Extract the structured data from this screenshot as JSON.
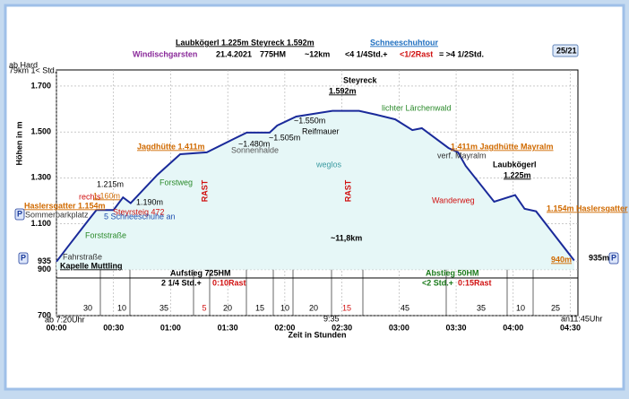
{
  "chart_data": {
    "type": "area",
    "header": [
      {
        "text": "Laubkögerl 1.225m  Steyreck 1.592m",
        "color": "#000000"
      },
      {
        "text": "Schneeschuhtour",
        "color": "#1f6fc0"
      },
      {
        "text": "Windischgarsten",
        "color": "#8a2a9a"
      },
      {
        "text": "21.4.2021",
        "color": "#000000"
      },
      {
        "text": "775HM",
        "color": "#000000"
      },
      {
        "text": "~12km",
        "color": "#000000"
      },
      {
        "text": "<4 1/4Std.+",
        "color": "#000000"
      },
      {
        "text": "<1/2Rast",
        "color": "#d01010"
      },
      {
        "text": "= >4 1/2Std.",
        "color": "#000000"
      },
      {
        "text": "25/21",
        "color": "#000000"
      },
      {
        "text": "ab Hard",
        "color": "#000000"
      },
      {
        "text": "79km 1< Std.",
        "color": "#000000"
      }
    ],
    "y_label": "Höhen in m",
    "x_label": "Zeit in Stunden",
    "x": [
      0,
      6,
      17,
      21,
      30,
      35,
      39,
      53,
      65,
      79,
      93,
      100,
      112,
      116,
      126,
      145,
      159,
      168,
      178,
      187,
      192,
      206,
      211,
      215,
      230,
      241,
      246,
      252,
      272
    ],
    "values": [
      935,
      1000,
      1118,
      1160,
      1160,
      1215,
      1190,
      1313,
      1403,
      1411,
      1469,
      1497,
      1497,
      1528,
      1567,
      1592,
      1592,
      1575,
      1555,
      1508,
      1516,
      1430,
      1411,
      1352,
      1196,
      1225,
      1165,
      1154,
      940
    ],
    "color": "#1a2a9a",
    "fill": "#e6f7f7",
    "xlim": [
      0,
      274
    ],
    "ylim": [
      700,
      1770
    ],
    "xticks": [
      {
        "value": 0,
        "label": "00:00"
      },
      {
        "value": 30,
        "label": "00:30"
      },
      {
        "value": 60,
        "label": "01:00"
      },
      {
        "value": 90,
        "label": "01:30"
      },
      {
        "value": 120,
        "label": "02:00"
      },
      {
        "value": 150,
        "label": "02:30"
      },
      {
        "value": 180,
        "label": "03:00"
      },
      {
        "value": 210,
        "label": "03:30"
      },
      {
        "value": 240,
        "label": "04:00"
      },
      {
        "value": 270,
        "label": "04:30"
      }
    ],
    "yticks": [
      700,
      900,
      935,
      {
        "value": 1100,
        "label": "1.100"
      },
      {
        "value": 1300,
        "label": "1.300"
      },
      {
        "value": 1500,
        "label": "1.500"
      },
      {
        "value": 1700,
        "label": "1.700"
      }
    ],
    "grid": true,
    "segments": [
      {
        "text": "30",
        "color": "#000000"
      },
      {
        "text": "10",
        "color": "#000000"
      },
      {
        "text": "35",
        "color": "#000000"
      },
      {
        "text": "5",
        "color": "#d01010"
      },
      {
        "text": "20",
        "color": "#000000"
      },
      {
        "text": "15",
        "color": "#000000"
      },
      {
        "text": "10",
        "color": "#000000"
      },
      {
        "text": "20",
        "color": "#000000"
      },
      {
        "text": "15",
        "color": "#d01010"
      },
      {
        "text": "45",
        "color": "#000000"
      },
      {
        "text": "35",
        "color": "#000000"
      },
      {
        "text": "10",
        "color": "#000000"
      },
      {
        "text": "25",
        "color": "#000000"
      }
    ],
    "annotations": [
      {
        "text": "Jagdhütte 1.411m",
        "color": "#d06a00"
      },
      {
        "text": "Steyreck",
        "color": "#000000"
      },
      {
        "text": "1.592m",
        "color": "#000000"
      },
      {
        "text": "lichter Lärchenwald",
        "color": "#2a8a2a"
      },
      {
        "text": "1.411m Jagdhütte Mayralm",
        "color": "#d06a00"
      },
      {
        "text": "verf. Mayralm",
        "color": "#333333"
      },
      {
        "text": "Laubkögerl",
        "color": "#000000"
      },
      {
        "text": "1.225m",
        "color": "#000000"
      },
      {
        "text": "1.154m Haslersgatter",
        "color": "#d06a00"
      },
      {
        "text": "Haslersgatter 1.154m",
        "color": "#d06a00"
      },
      {
        "text": "Sommerparkplatz",
        "color": "#333333"
      },
      {
        "text": "1.215m",
        "color": "#000000"
      },
      {
        "text": "rechts",
        "color": "#d01010"
      },
      {
        "text": "1.160m",
        "color": "#d06a00"
      },
      {
        "text": "1.190m",
        "color": "#000000"
      },
      {
        "text": "Steyrsteig 472",
        "color": "#d01010"
      },
      {
        "text": "5 Schneeschuhe an",
        "color": "#1f4fb0"
      },
      {
        "text": "Forststraße",
        "color": "#2a8a2a"
      },
      {
        "text": "Forstweg",
        "color": "#2a8a2a"
      },
      {
        "text": "Fahrstraße",
        "color": "#333333"
      },
      {
        "text": "Kapelle Muttling",
        "color": "#000000"
      },
      {
        "text": "RAST",
        "color": "#d01010"
      },
      {
        "text": "RAST",
        "color": "#d01010"
      },
      {
        "text": "~1.480m",
        "color": "#000000"
      },
      {
        "text": "Sonnenhalde",
        "color": "#555555"
      },
      {
        "text": "~1.505m",
        "color": "#000000"
      },
      {
        "text": "~1.550m",
        "color": "#000000"
      },
      {
        "text": "Reifmauer",
        "color": "#000000"
      },
      {
        "text": "weglos",
        "color": "#3a9aa0"
      },
      {
        "text": "~11,8km",
        "color": "#000000"
      },
      {
        "text": "Wanderweg",
        "color": "#d01010"
      },
      {
        "text": "940m",
        "color": "#d06a00"
      },
      {
        "text": "935m",
        "color": "#000000"
      },
      {
        "text": "Aufstieg 725HM",
        "color": "#000000"
      },
      {
        "text": "2 1/4 Std.+",
        "color": "#000000"
      },
      {
        "text": "0:10Rast",
        "color": "#d01010"
      },
      {
        "text": "Abstieg 50HM",
        "color": "#1a7a1a"
      },
      {
        "text": "<2 Std.+",
        "color": "#1a7a1a"
      },
      {
        "text": "0:15Rast",
        "color": "#d01010"
      },
      {
        "text": "ab 7:20Uhr",
        "color": "#000000"
      },
      {
        "text": "9:35",
        "color": "#000000"
      },
      {
        "text": "an11:45Uhr",
        "color": "#000000"
      },
      {
        "text": "P",
        "color": "#1a3a9a"
      },
      {
        "text": "P",
        "color": "#1a3a9a"
      },
      {
        "text": "P",
        "color": "#1a3a9a"
      }
    ]
  }
}
